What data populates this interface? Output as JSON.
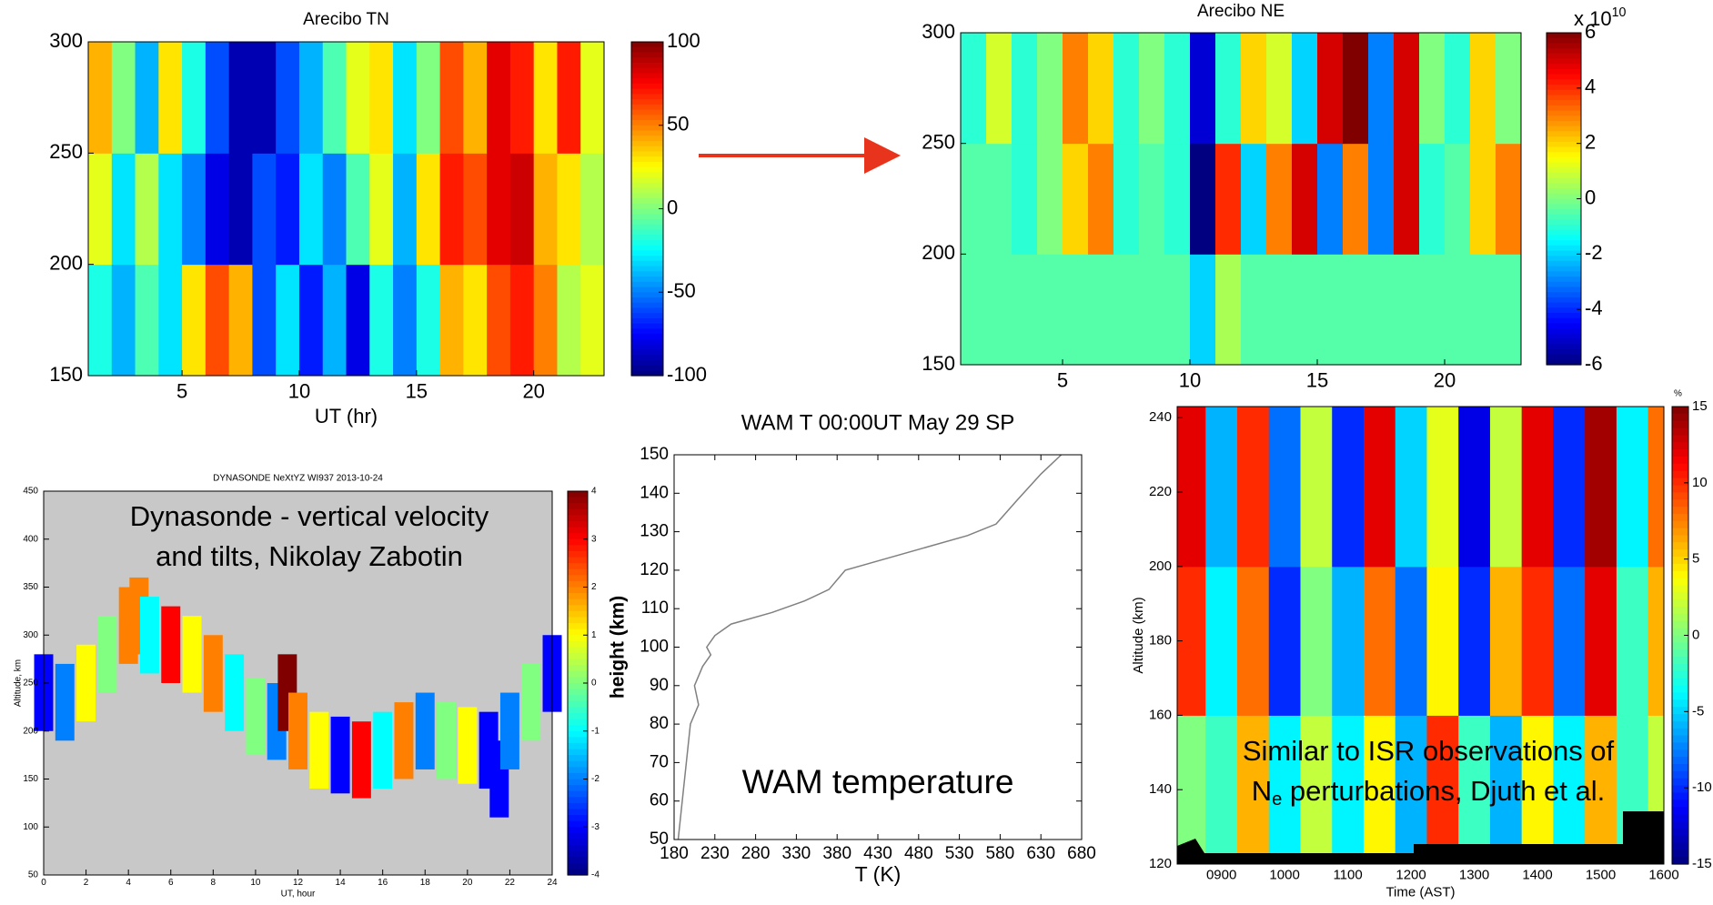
{
  "chart_data": [
    {
      "type": "heatmap",
      "title": "Arecibo TN",
      "xlabel": "UT (hr)",
      "xbins": [
        1,
        2,
        3,
        4,
        5,
        6,
        7,
        8,
        9,
        10,
        11,
        12,
        13,
        14,
        15,
        16,
        17,
        18,
        19,
        20,
        21,
        22,
        23
      ],
      "ybins": [
        150,
        200,
        250,
        300
      ],
      "values": [
        [
          -20,
          -40,
          -10,
          -30,
          30,
          60,
          40,
          -60,
          -30,
          -70,
          -40,
          -80,
          -20,
          -50,
          -20,
          40,
          30,
          60,
          70,
          50,
          10,
          20
        ],
        [
          20,
          -30,
          10,
          -30,
          -50,
          -80,
          -90,
          -60,
          -70,
          -30,
          -50,
          -10,
          20,
          -40,
          30,
          70,
          60,
          80,
          85,
          40,
          30,
          10
        ],
        [
          40,
          0,
          -40,
          30,
          -20,
          -60,
          -90,
          -90,
          -60,
          -40,
          -10,
          20,
          30,
          -30,
          0,
          60,
          40,
          80,
          70,
          30,
          70,
          20
        ]
      ],
      "xlim": [
        1,
        23
      ],
      "xticks": [
        5,
        10,
        15,
        20
      ],
      "ylim": [
        150,
        300
      ],
      "yticks": [
        150,
        200,
        250,
        300
      ],
      "clim": [
        -100,
        100
      ],
      "cticks": [
        100,
        50,
        0,
        -50,
        -100
      ]
    },
    {
      "type": "heatmap",
      "title": "Arecibo NE",
      "xbins": [
        1,
        2,
        3,
        4,
        5,
        6,
        7,
        8,
        9,
        10,
        11,
        12,
        13,
        14,
        15,
        16,
        17,
        18,
        19,
        20,
        21,
        22,
        23
      ],
      "ybins": [
        150,
        200,
        250,
        300
      ],
      "values": [
        [
          -0.5,
          -0.5,
          -0.5,
          -0.5,
          -0.5,
          -0.5,
          -0.5,
          -0.5,
          -0.5,
          -2,
          0.5,
          -0.5,
          -0.5,
          -0.5,
          -0.5,
          -0.5,
          -0.5,
          -0.5,
          -0.5,
          -0.5,
          -0.5,
          -0.5
        ],
        [
          -0.5,
          -0.5,
          -1,
          0,
          2,
          3,
          -1,
          -0.5,
          -1,
          -6,
          4,
          -2,
          3,
          5,
          -3,
          3,
          -3,
          5,
          -1,
          -0.5,
          2,
          3
        ],
        [
          -1,
          1,
          -1,
          0,
          3,
          2,
          -1,
          0,
          -1,
          -5,
          -1,
          2,
          1,
          -2,
          5,
          6,
          -3,
          5,
          0,
          -1,
          2,
          0
        ]
      ],
      "xlim": [
        1,
        23
      ],
      "xticks": [
        5,
        10,
        15,
        20
      ],
      "ylim": [
        150,
        300
      ],
      "yticks": [
        150,
        200,
        250,
        300
      ],
      "clim": [
        -6,
        6
      ],
      "cticks": [
        6,
        4,
        2,
        0,
        -2,
        -4,
        -6
      ],
      "cbar_multiplier": {
        "base": "x 10",
        "exponent": "10"
      }
    },
    {
      "type": "streaks",
      "title": "DYNASONDE NeXtYZ WI937 2013-10-24",
      "xlabel": "UT, hour",
      "ylabel": "Altitude, km",
      "annotation": [
        "Dynasonde - vertical velocity",
        "and tilts, Nikolay Zabotin"
      ],
      "x": [
        0,
        1,
        2,
        3,
        4,
        4.5,
        5,
        6,
        7,
        8,
        9,
        10,
        11,
        11.5,
        12,
        13,
        14,
        15,
        16,
        17,
        18,
        19,
        20,
        21,
        21.5,
        22,
        23,
        24
      ],
      "values": [
        240,
        230,
        250,
        280,
        310,
        320,
        300,
        290,
        280,
        260,
        240,
        215,
        210,
        240,
        200,
        180,
        175,
        170,
        180,
        190,
        200,
        190,
        185,
        180,
        150,
        200,
        230,
        260
      ],
      "c": [
        -3,
        -2,
        1,
        0,
        2,
        2,
        -1,
        3,
        1,
        2,
        -1,
        0,
        -2,
        4,
        2,
        1,
        -3,
        3,
        -1,
        2,
        -2,
        0,
        1,
        -3,
        -3,
        -2,
        0,
        -3
      ],
      "xlim": [
        0,
        24
      ],
      "xticks": [
        0,
        2,
        4,
        6,
        8,
        10,
        12,
        14,
        16,
        18,
        20,
        22,
        24
      ],
      "ylim": [
        50,
        450
      ],
      "yticks": [
        50,
        100,
        150,
        200,
        250,
        300,
        350,
        400,
        450
      ],
      "clim": [
        -4,
        4
      ],
      "cticks": [
        4,
        3,
        2,
        1,
        0,
        -1,
        -2,
        -3,
        -4
      ]
    },
    {
      "type": "line",
      "title": "WAM T 00:00UT May 29 SP",
      "xlabel": "T (K)",
      "ylabel": "height (km)",
      "annotation": [
        "WAM temperature"
      ],
      "x": [
        185,
        190,
        195,
        200,
        210,
        205,
        215,
        225,
        220,
        230,
        250,
        300,
        340,
        370,
        390,
        440,
        490,
        540,
        575,
        600,
        630,
        655
      ],
      "values": [
        50,
        60,
        70,
        80,
        85,
        90,
        95,
        98,
        100,
        103,
        106,
        109,
        112,
        115,
        120,
        123,
        126,
        129,
        132,
        138,
        145,
        150
      ],
      "color": "#808080",
      "xlim": [
        180,
        680
      ],
      "xticks": [
        180,
        230,
        280,
        330,
        380,
        430,
        480,
        530,
        580,
        630,
        680
      ],
      "ylim": [
        50,
        150
      ],
      "yticks": [
        50,
        60,
        70,
        80,
        90,
        100,
        110,
        120,
        130,
        140,
        150
      ]
    },
    {
      "type": "heatmap",
      "xlabel": "Time (AST)",
      "ylabel": "Altitude (km)",
      "annotation": {
        "line1": "Similar to ISR observations of",
        "symbol": "N",
        "subscript": "e",
        "rest": " perturbations, Djuth et al."
      },
      "xbins": [
        8.3,
        8.75,
        9.25,
        9.75,
        10.25,
        10.75,
        11.25,
        11.75,
        12.25,
        12.75,
        13.25,
        13.75,
        14.25,
        14.75,
        15.25,
        15.75,
        16
      ],
      "ybins": [
        120,
        160,
        200,
        243
      ],
      "values": [
        [
          0,
          -2,
          6,
          -4,
          2,
          -4,
          4,
          -6,
          10,
          -2,
          -6,
          4,
          -4,
          6,
          -2,
          2
        ],
        [
          10,
          -4,
          8,
          -10,
          0,
          -6,
          8,
          -8,
          4,
          -10,
          6,
          10,
          -8,
          12,
          -2,
          6
        ],
        [
          12,
          -6,
          10,
          -8,
          2,
          -10,
          12,
          -5,
          3,
          -12,
          2,
          12,
          -10,
          14,
          -4,
          8
        ]
      ],
      "xlim": [
        8.3,
        16
      ],
      "xticks": [
        {
          "value": 9,
          "label": "0900"
        },
        {
          "value": 10,
          "label": "1000"
        },
        {
          "value": 11,
          "label": "1100"
        },
        {
          "value": 12,
          "label": "1200"
        },
        {
          "value": 13,
          "label": "1300"
        },
        {
          "value": 14,
          "label": "1400"
        },
        {
          "value": 15,
          "label": "1500"
        },
        {
          "value": 16,
          "label": "1600"
        }
      ],
      "ylim": [
        120,
        243
      ],
      "yticks": [
        120,
        140,
        160,
        180,
        200,
        220,
        240
      ],
      "clim": [
        -15,
        15
      ],
      "cticks": [
        15,
        10,
        5,
        0,
        -5,
        -10,
        -15
      ],
      "cbar_unit": "%"
    }
  ]
}
